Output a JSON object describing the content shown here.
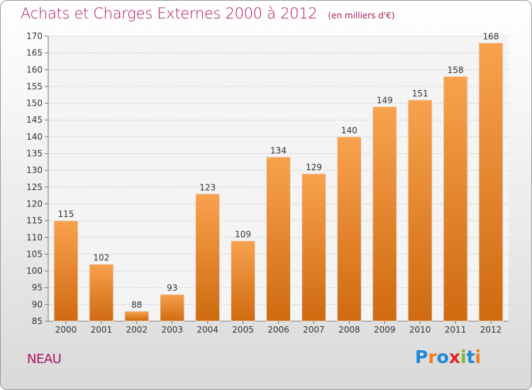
{
  "header": {
    "title": "Achats et Charges Externes 2000 à 2012",
    "unit": "(en milliers d'€)"
  },
  "footer": {
    "commune": "NEAU",
    "logo_text": "Proxiti",
    "logo_colors": [
      "#1e88d8",
      "#ef7d1a",
      "#1e88d8",
      "#e02424",
      "#7dbb2a",
      "#1e88d8",
      "#ef7d1a"
    ]
  },
  "colors": {
    "bar_top": "#f8a24e",
    "bar_bottom": "#cf6a10",
    "title": "#a8185e",
    "grid": "#c8c8c8"
  },
  "chart_data": {
    "type": "bar",
    "title": "Achats et Charges Externes 2000 à 2012",
    "xlabel": "",
    "ylabel": "",
    "categories": [
      "2000",
      "2001",
      "2002",
      "2003",
      "2004",
      "2005",
      "2006",
      "2007",
      "2008",
      "2009",
      "2010",
      "2011",
      "2012"
    ],
    "values": [
      115,
      102,
      88,
      93,
      123,
      109,
      134,
      129,
      140,
      149,
      151,
      158,
      168
    ],
    "ylim": [
      85,
      170
    ],
    "yticks": [
      85,
      90,
      95,
      100,
      105,
      110,
      115,
      120,
      125,
      130,
      135,
      140,
      145,
      150,
      155,
      160,
      165,
      170
    ],
    "grid": true,
    "data_labels": true
  }
}
